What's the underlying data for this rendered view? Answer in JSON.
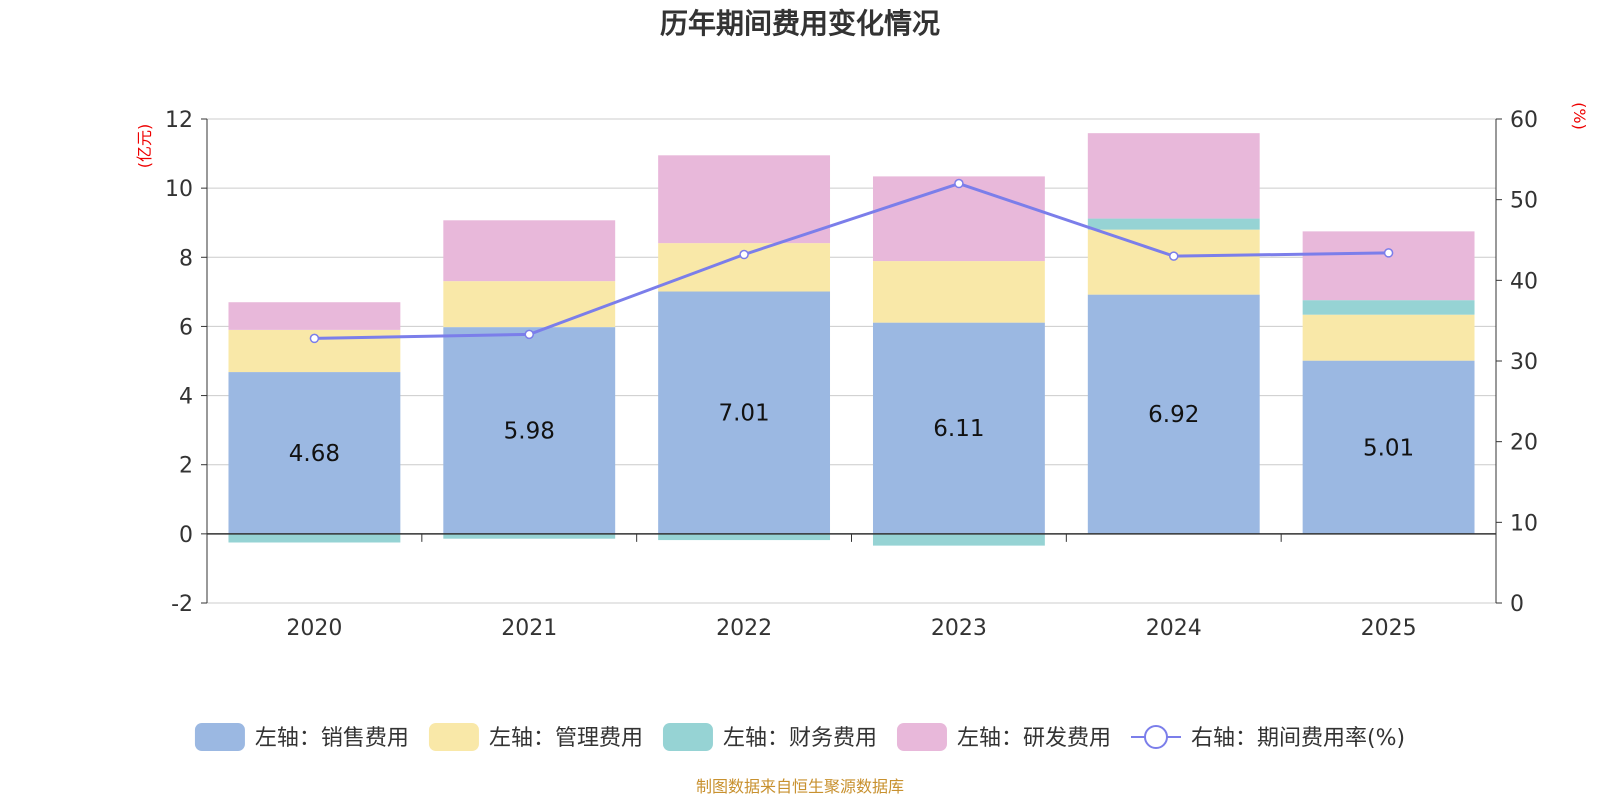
{
  "chart_data": {
    "type": "bar",
    "title": "历年期间费用变化情况",
    "categories": [
      "2020",
      "2021",
      "2022",
      "2023",
      "2024",
      "2025"
    ],
    "left_axis": {
      "unit": "(亿元)",
      "ylim": [
        -2,
        12
      ],
      "ticks": [
        "-2",
        "0",
        "2",
        "4",
        "6",
        "8",
        "10",
        "12"
      ]
    },
    "right_axis": {
      "unit": "(%)",
      "ylim": [
        0,
        60
      ],
      "ticks": [
        "0",
        "10",
        "20",
        "30",
        "40",
        "50",
        "60"
      ]
    },
    "series": [
      {
        "name": "左轴：销售费用",
        "color": "#9bb8e2",
        "values": [
          4.68,
          5.98,
          7.01,
          6.11,
          6.92,
          5.01
        ]
      },
      {
        "name": "左轴：管理费用",
        "color": "#f9e8a8",
        "values": [
          1.22,
          1.33,
          1.4,
          1.78,
          1.88,
          1.33
        ]
      },
      {
        "name": "左轴：财务费用",
        "color": "#96d3d4",
        "values": [
          -0.25,
          -0.14,
          -0.18,
          -0.34,
          0.32,
          0.42
        ]
      },
      {
        "name": "左轴：研发费用",
        "color": "#e8b8da",
        "values": [
          0.8,
          1.76,
          2.54,
          2.45,
          2.47,
          1.99
        ]
      }
    ],
    "line": {
      "name": "右轴：期间费用率(%)",
      "color": "#7b7eea",
      "values": [
        32.8,
        33.3,
        43.2,
        52.0,
        43.0,
        43.4
      ]
    },
    "data_labels": [
      "4.68",
      "5.98",
      "7.01",
      "6.11",
      "6.92",
      "5.01"
    ],
    "source": "制图数据来自恒生聚源数据库"
  }
}
